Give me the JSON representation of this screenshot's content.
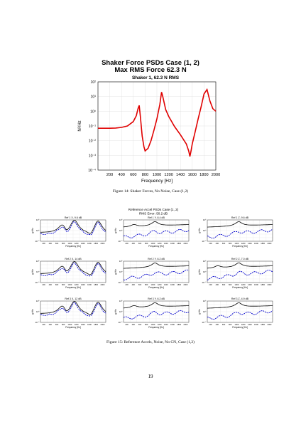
{
  "figure1": {
    "title_line1": "Shaker Force PSDs Case (1, 2)",
    "title_line2": "Max RMS Force 62.3 N",
    "caption": "Figure 14: Shaker Forces, No Noise, Case (1,2)",
    "chart_data": {
      "type": "line",
      "title": "Shaker 1, 62.3 N RMS",
      "xlabel": "Frequency [Hz]",
      "ylabel": "N²/Hz",
      "xlim": [
        0,
        2000
      ],
      "ylim": [
        0.0001,
        100
      ],
      "yscale": "log",
      "grid": true,
      "xticks": [
        200,
        400,
        600,
        800,
        1000,
        1200,
        1400,
        1600,
        1800,
        2000
      ],
      "yticks": [
        "10⁻⁴",
        "10⁻³",
        "10⁻²",
        "10⁻¹",
        "10⁰",
        "10¹",
        "10²"
      ],
      "series": [
        {
          "color": "#e00000",
          "x": [
            1,
            100,
            200,
            300,
            400,
            500,
            600,
            650,
            680,
            700,
            720,
            750,
            780,
            800,
            850,
            900,
            950,
            1000,
            1050,
            1080,
            1100,
            1150,
            1200,
            1300,
            1400,
            1500,
            1540,
            1560,
            1580,
            1600,
            1650,
            1700,
            1750,
            1800,
            1850,
            1900,
            1950,
            2000
          ],
          "y": [
            0.07,
            0.07,
            0.07,
            0.072,
            0.08,
            0.1,
            0.2,
            0.5,
            1.5,
            2.5,
            0.4,
            0.02,
            0.004,
            0.002,
            0.003,
            0.01,
            0.05,
            0.3,
            3,
            20,
            10,
            1.3,
            0.45,
            0.09,
            0.025,
            0.006,
            0.002,
            0.00085,
            0.002,
            0.006,
            0.04,
            0.3,
            2,
            15,
            30,
            5,
            1.5,
            1.0
          ]
        }
      ]
    }
  },
  "figure2": {
    "title_line1": "Reference Accel PSDs Case (1, 2)",
    "title_line2": "RMS Error: 50.2 dB",
    "caption": "Figure 15: Reference Accels, Noise, No CN, Case (1,2)",
    "xlabel": "Frequency [Hz]",
    "ylabel": "g²/Hz",
    "panels": [
      {
        "title": "Ref 1 X, 9.6 dB"
      },
      {
        "title": "Ref 1 Y, 8.4 dB"
      },
      {
        "title": "Ref 1 Z, 9.6 dB"
      },
      {
        "title": "Ref 2 X, 14 dB"
      },
      {
        "title": "Ref 2 Y, 6.2 dB"
      },
      {
        "title": "Ref 2 Z, 7.0 dB"
      },
      {
        "title": "Ref 3 X, 12 dB"
      },
      {
        "title": "Ref 3 Y, 6.2 dB"
      },
      {
        "title": "Ref 3 Z, 4.9 dB"
      }
    ],
    "xticks": [
      "200",
      "400",
      "600",
      "800",
      "1000",
      "1200",
      "1400",
      "1600",
      "1800",
      "2000"
    ],
    "yticks": [
      "10⁻⁵",
      "10⁰",
      "10⁵"
    ],
    "colors": {
      "reference": "#000000",
      "measured": "#0000cc"
    }
  },
  "page_number": "19"
}
